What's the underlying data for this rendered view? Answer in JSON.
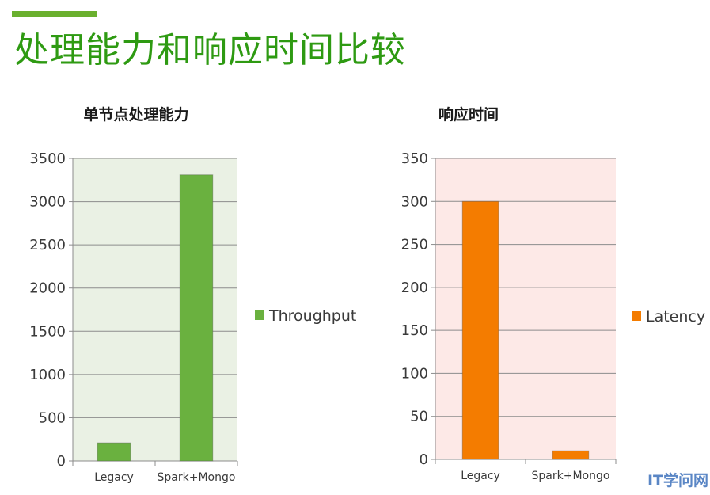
{
  "slide": {
    "title": "处理能力和响应时间比较",
    "accent_color": "#6ab02e",
    "title_color": "#2e9a12"
  },
  "watermark": "IT学问网",
  "chart_data": [
    {
      "type": "bar",
      "title": "单节点处理能力",
      "categories": [
        "Legacy",
        "Spark+Mongo"
      ],
      "series": [
        {
          "name": "Throughput",
          "values": [
            210,
            3310
          ],
          "color": "#6ab13f"
        }
      ],
      "ylim": [
        0,
        3500
      ],
      "yticks": [
        0,
        500,
        1000,
        1500,
        2000,
        2500,
        3000,
        3500
      ],
      "xlabel": "",
      "ylabel": "",
      "grid": true,
      "plot_background": "#eaf1e4",
      "legend": "right"
    },
    {
      "type": "bar",
      "title": "响应时间",
      "categories": [
        "Legacy",
        "Spark+Mongo"
      ],
      "series": [
        {
          "name": "Latency",
          "values": [
            300,
            10
          ],
          "color": "#f47c00"
        }
      ],
      "ylim": [
        0,
        350
      ],
      "yticks": [
        0,
        50,
        100,
        150,
        200,
        250,
        300,
        350
      ],
      "xlabel": "",
      "ylabel": "",
      "grid": true,
      "plot_background": "#fde9e7",
      "legend": "right"
    }
  ]
}
